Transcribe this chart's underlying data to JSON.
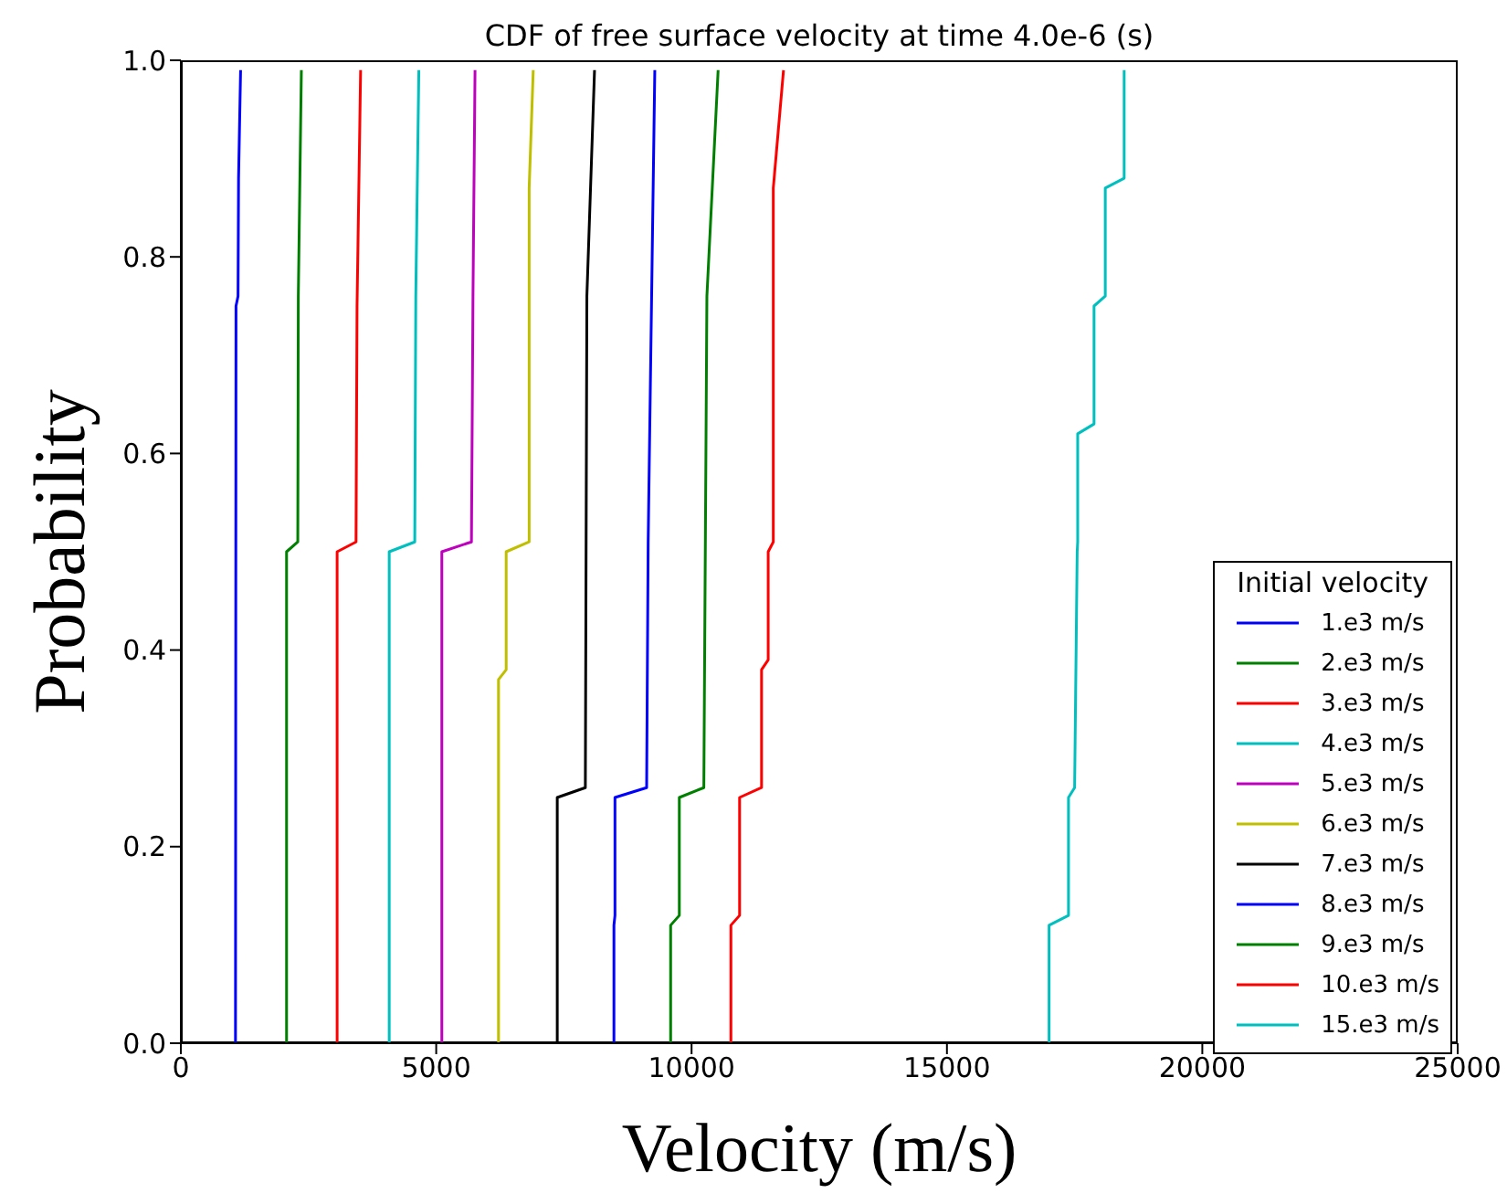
{
  "chart_data": {
    "type": "line",
    "title": "CDF of free surface velocity at time 4.0e-6 (s)",
    "xlabel": "Velocity (m/s)",
    "ylabel": "Probability",
    "legend_title": "Initial velocity",
    "legend": "bottom right",
    "grid": false,
    "marker": "none",
    "line_style": "solid",
    "xlim": [
      0,
      25000
    ],
    "xticks": [
      0,
      5000,
      10000,
      15000,
      20000,
      25000
    ],
    "ylim": [
      0,
      1
    ],
    "yticks": [
      {
        "value": 0,
        "label": "0.0"
      },
      {
        "value": 0.2,
        "label": "0.2"
      },
      {
        "value": 0.4,
        "label": "0.4"
      },
      {
        "value": 0.6,
        "label": "0.6"
      },
      {
        "value": 0.8,
        "label": "0.8"
      },
      {
        "value": 1,
        "label": "1.0"
      }
    ],
    "series": [
      {
        "name": "1.e3 m/s",
        "color": "#0000ff",
        "x": [
          1070,
          1080,
          1120,
          1130,
          1170
        ],
        "values": [
          0,
          0.75,
          0.76,
          0.88,
          0.99
        ]
      },
      {
        "name": "2.e3 m/s",
        "color": "#008000",
        "x": [
          2070,
          2070,
          2290,
          2300,
          2360
        ],
        "values": [
          0,
          0.5,
          0.51,
          0.76,
          0.99
        ]
      },
      {
        "name": "3.e3 m/s",
        "color": "#ff0000",
        "x": [
          3060,
          3060,
          3430,
          3450,
          3520
        ],
        "values": [
          0,
          0.5,
          0.51,
          0.75,
          0.99
        ]
      },
      {
        "name": "4.e3 m/s",
        "color": "#00bfbf",
        "x": [
          4080,
          4080,
          4580,
          4600,
          4660
        ],
        "values": [
          0,
          0.5,
          0.51,
          0.76,
          0.99
        ]
      },
      {
        "name": "5.e3 m/s",
        "color": "#bf00bf",
        "x": [
          5110,
          5110,
          5690,
          5720,
          5760
        ],
        "values": [
          0,
          0.5,
          0.51,
          0.76,
          0.99
        ]
      },
      {
        "name": "6.e3 m/s",
        "color": "#bfbf00",
        "x": [
          6220,
          6220,
          6370,
          6370,
          6820,
          6820,
          6900
        ],
        "values": [
          0,
          0.37,
          0.38,
          0.5,
          0.51,
          0.87,
          0.99
        ]
      },
      {
        "name": "7.e3 m/s",
        "color": "#000000",
        "x": [
          7370,
          7370,
          7920,
          7950,
          8100
        ],
        "values": [
          0,
          0.25,
          0.26,
          0.76,
          0.99
        ]
      },
      {
        "name": "8.e3 m/s",
        "color": "#0000ff",
        "x": [
          8480,
          8480,
          8500,
          8500,
          9120,
          9150,
          9280
        ],
        "values": [
          0,
          0.12,
          0.13,
          0.25,
          0.26,
          0.51,
          0.99
        ]
      },
      {
        "name": "9.e3 m/s",
        "color": "#008000",
        "x": [
          9590,
          9590,
          9760,
          9760,
          10240,
          10300,
          10520
        ],
        "values": [
          0,
          0.12,
          0.13,
          0.25,
          0.26,
          0.76,
          0.99
        ]
      },
      {
        "name": "10.e3 m/s",
        "color": "#ff0000",
        "x": [
          10770,
          10770,
          10940,
          10940,
          11370,
          11370,
          11500,
          11500,
          11600,
          11600,
          11800
        ],
        "values": [
          0,
          0.12,
          0.13,
          0.25,
          0.26,
          0.38,
          0.39,
          0.5,
          0.51,
          0.87,
          0.99
        ]
      },
      {
        "name": "15.e3 m/s",
        "color": "#00bfbf",
        "x": [
          17000,
          17000,
          17380,
          17380,
          17500,
          17550,
          17560,
          17560,
          17880,
          17880,
          18100,
          18100,
          18470,
          18470
        ],
        "values": [
          0,
          0.12,
          0.13,
          0.25,
          0.26,
          0.5,
          0.51,
          0.62,
          0.63,
          0.75,
          0.76,
          0.87,
          0.88,
          0.99
        ]
      }
    ]
  }
}
